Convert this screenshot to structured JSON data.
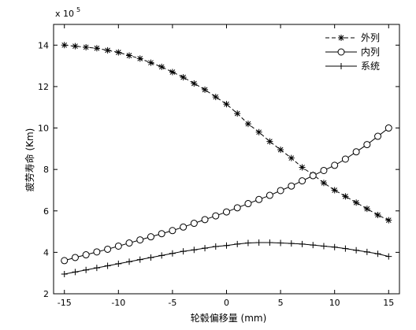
{
  "chart_data": {
    "type": "line",
    "title": "",
    "xlabel": "轮毂偏移量 (mm)",
    "ylabel": "疲劳寿命 (Km)",
    "y_multiplier_label": "x 10",
    "y_multiplier_exponent": "5",
    "xlim": [
      -16,
      16
    ],
    "ylim": [
      2,
      15
    ],
    "xticks": [
      -15,
      -10,
      -5,
      0,
      5,
      10,
      15
    ],
    "yticks": [
      2,
      4,
      6,
      8,
      10,
      12,
      14
    ],
    "grid": false,
    "legend_position": "top-right",
    "x": [
      -15,
      -14,
      -13,
      -12,
      -11,
      -10,
      -9,
      -8,
      -7,
      -6,
      -5,
      -4,
      -3,
      -2,
      -1,
      0,
      1,
      2,
      3,
      4,
      5,
      6,
      7,
      8,
      9,
      10,
      11,
      12,
      13,
      14,
      15
    ],
    "series": [
      {
        "name": "外列",
        "marker": "asterisk",
        "line_style": "dashed",
        "color": "#000000",
        "values": [
          14.0,
          13.95,
          13.9,
          13.85,
          13.75,
          13.65,
          13.5,
          13.35,
          13.15,
          12.95,
          12.7,
          12.45,
          12.15,
          11.85,
          11.5,
          11.15,
          10.7,
          10.2,
          9.8,
          9.35,
          8.95,
          8.55,
          8.1,
          7.75,
          7.35,
          7.0,
          6.7,
          6.4,
          6.1,
          5.8,
          5.55
        ]
      },
      {
        "name": "内列",
        "marker": "circle",
        "line_style": "solid",
        "color": "#000000",
        "values": [
          3.6,
          3.75,
          3.88,
          4.02,
          4.15,
          4.3,
          4.45,
          4.6,
          4.75,
          4.9,
          5.05,
          5.22,
          5.4,
          5.58,
          5.76,
          5.95,
          6.15,
          6.35,
          6.55,
          6.75,
          6.98,
          7.2,
          7.45,
          7.7,
          7.95,
          8.2,
          8.5,
          8.85,
          9.2,
          9.6,
          10.0
        ]
      },
      {
        "name": "系统",
        "marker": "plus",
        "line_style": "solid",
        "color": "#000000",
        "values": [
          2.95,
          3.05,
          3.15,
          3.25,
          3.35,
          3.45,
          3.55,
          3.65,
          3.75,
          3.85,
          3.95,
          4.05,
          4.12,
          4.2,
          4.28,
          4.33,
          4.4,
          4.45,
          4.47,
          4.47,
          4.45,
          4.43,
          4.4,
          4.35,
          4.3,
          4.25,
          4.18,
          4.1,
          4.02,
          3.93,
          3.8
        ]
      }
    ]
  }
}
